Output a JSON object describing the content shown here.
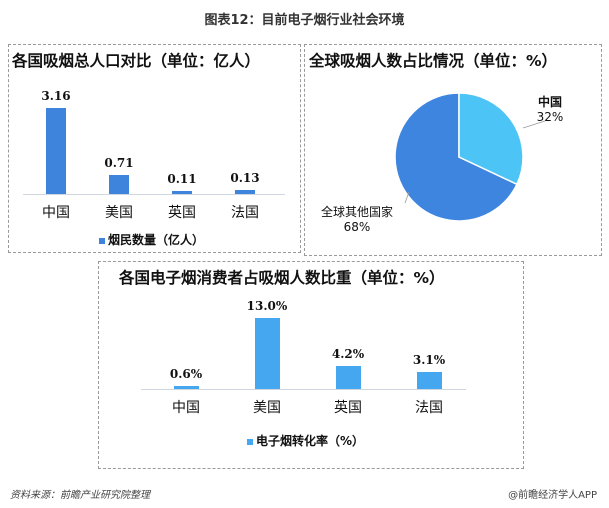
{
  "title": "图表12：目前电子烟行业社会环境",
  "footer": {
    "source": "资料来源：前瞻产业研究院整理",
    "credit": "@前瞻经济学人APP"
  },
  "colors": {
    "bar_dark": "#3e84dc",
    "bar_light": "#45a7ef",
    "pie_other": "#3d85de",
    "pie_china": "#4cc4f6"
  },
  "chart_data": [
    {
      "type": "bar",
      "title": "各国吸烟总人口对比（单位：亿人）",
      "categories": [
        "中国",
        "美国",
        "英国",
        "法国"
      ],
      "series": [
        {
          "name": "烟民数量（亿人）",
          "values": [
            3.16,
            0.71,
            0.11,
            0.13
          ]
        }
      ],
      "value_labels": [
        "3.16",
        "0.71",
        "0.11",
        "0.13"
      ],
      "legend": "烟民数量（亿人）",
      "legend_position": "bottom",
      "grid": false
    },
    {
      "type": "pie",
      "title": "全球吸烟人数占比情况（单位：%）",
      "slices": [
        {
          "label": "中国",
          "value": 32,
          "display": "32%"
        },
        {
          "label": "全球其他国家",
          "value": 68,
          "display": "68%"
        }
      ]
    },
    {
      "type": "bar",
      "title": "各国电子烟消费者占吸烟人数比重（单位：%）",
      "categories": [
        "中国",
        "美国",
        "英国",
        "法国"
      ],
      "series": [
        {
          "name": "电子烟转化率（%）",
          "values": [
            0.6,
            13.0,
            4.2,
            3.1
          ]
        }
      ],
      "value_labels": [
        "0.6%",
        "13.0%",
        "4.2%",
        "3.1%"
      ],
      "legend": "电子烟转化率（%）",
      "legend_position": "bottom",
      "grid": false
    }
  ]
}
